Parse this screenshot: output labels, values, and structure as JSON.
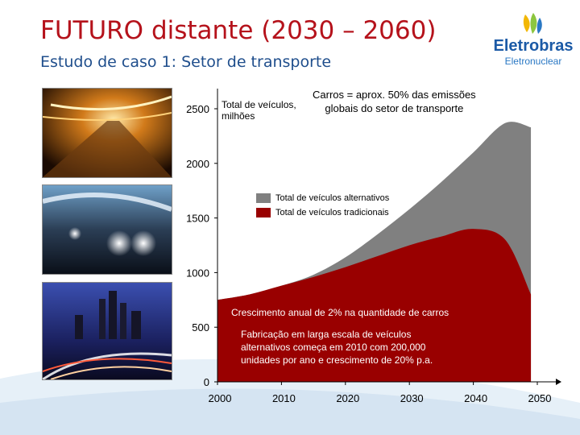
{
  "header": {
    "title": "FUTURO distante (2030 – 2060)",
    "subtitle": "Estudo de caso 1: Setor de transporte"
  },
  "logo": {
    "name": "Eletrobras",
    "sub": "Eletronuclear"
  },
  "colors": {
    "title": "#b5121b",
    "subtitle": "#1f4e8c",
    "traditional": "#990000",
    "alternative": "#808080"
  },
  "annotations": {
    "ylabel_line1": "Total de veículos,",
    "ylabel_line2": "milhões",
    "note_line1": "Carros = aprox. 50%  das emissões",
    "note_line2": "globais do setor de transporte",
    "growth": "Crescimento anual de 2% na quantidade de carros",
    "fab_line1": "Fabricação em larga escala de veículos",
    "fab_line2": "alternativos começa em 2010 com 200,000",
    "fab_line3": "unidades por ano e crescimento de 20% p.a."
  },
  "chart_data": {
    "type": "area",
    "xlabel": "",
    "ylabel": "Total de veículos, milhões",
    "xlim": [
      2000,
      2050
    ],
    "ylim": [
      0,
      2500
    ],
    "x_ticks": [
      "2000",
      "2010",
      "2020",
      "2030",
      "2040",
      "2050"
    ],
    "y_ticks": [
      "0",
      "500",
      "1000",
      "1500",
      "2000",
      "2500"
    ],
    "x": [
      2000,
      2005,
      2010,
      2015,
      2020,
      2025,
      2030,
      2035,
      2040,
      2045,
      2049
    ],
    "series": [
      {
        "name": "Total de veículos tradicionais",
        "values": [
          750,
          800,
          880,
          960,
          1050,
          1150,
          1250,
          1330,
          1400,
          1300,
          800
        ]
      },
      {
        "name": "Total de veículos alternativos",
        "values": [
          0,
          0,
          0,
          20,
          90,
          200,
          330,
          500,
          700,
          1070,
          1530
        ]
      }
    ],
    "legend": "top-center"
  }
}
